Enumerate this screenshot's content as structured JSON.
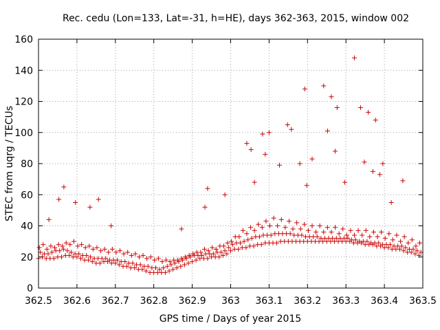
{
  "colors": {
    "marker": "#cc0000",
    "grid": "#a0a0a0",
    "axis": "#000000",
    "background": "#ffffff"
  },
  "chart_data": {
    "type": "scatter",
    "title": "Rec. cedu (Lon=133, Lat=-31, h=HE), days 362-363, 2015, window 002",
    "xlabel": "GPS time / Days of year 2015",
    "ylabel": "STEC from uqrg / TECUs",
    "xlim": [
      362.5,
      363.5
    ],
    "ylim": [
      0,
      160
    ],
    "grid": true,
    "marker": "plus",
    "x_ticks": [
      362.5,
      362.6,
      362.7,
      362.8,
      362.9,
      363.0,
      363.1,
      363.2,
      363.3,
      363.4,
      363.5
    ],
    "x_tick_labels": [
      "362.5",
      "362.6",
      "362.7",
      "362.8",
      "362.9",
      "363",
      "363.1",
      "363.2",
      "363.3",
      "363.4",
      "363.5"
    ],
    "y_ticks": [
      0,
      20,
      40,
      60,
      80,
      100,
      120,
      140,
      160
    ],
    "y_tick_labels": [
      "0",
      "20",
      "40",
      "60",
      "80",
      "100",
      "120",
      "140",
      "160"
    ],
    "x": [
      362.5,
      362.51,
      362.52,
      362.53,
      362.54,
      362.55,
      362.56,
      362.57,
      362.58,
      362.59,
      362.6,
      362.61,
      362.62,
      362.63,
      362.64,
      362.65,
      362.66,
      362.67,
      362.68,
      362.69,
      362.7,
      362.71,
      362.72,
      362.73,
      362.74,
      362.75,
      362.76,
      362.77,
      362.78,
      362.79,
      362.8,
      362.81,
      362.82,
      362.83,
      362.84,
      362.85,
      362.86,
      362.87,
      362.88,
      362.89,
      362.9,
      362.91,
      362.92,
      362.93,
      362.94,
      362.95,
      362.96,
      362.97,
      362.98,
      362.99,
      363.0,
      363.01,
      363.02,
      363.03,
      363.04,
      363.05,
      363.06,
      363.07,
      363.08,
      363.09,
      363.1,
      363.11,
      363.12,
      363.13,
      363.14,
      363.15,
      363.16,
      363.17,
      363.18,
      363.19,
      363.2,
      363.21,
      363.22,
      363.23,
      363.24,
      363.25,
      363.26,
      363.27,
      363.28,
      363.29,
      363.3,
      363.31,
      363.32,
      363.33,
      363.34,
      363.35,
      363.36,
      363.37,
      363.38,
      363.39,
      363.4,
      363.41,
      363.42,
      363.43,
      363.44,
      363.45,
      363.46,
      363.47,
      363.48,
      363.49,
      362.505,
      362.515,
      362.525,
      362.535,
      362.545,
      362.555,
      362.565,
      362.575,
      362.585,
      362.595,
      362.605,
      362.615,
      362.625,
      362.635,
      362.645,
      362.655,
      362.665,
      362.675,
      362.685,
      362.695,
      362.705,
      362.715,
      362.725,
      362.735,
      362.745,
      362.755,
      362.765,
      362.775,
      362.785,
      362.795,
      362.805,
      362.815,
      362.825,
      362.835,
      362.845,
      362.855,
      362.865,
      362.875,
      362.885,
      362.895,
      362.905,
      362.915,
      362.925,
      362.935,
      362.945,
      362.955,
      362.965,
      362.975,
      362.985,
      362.995,
      363.005,
      363.015,
      363.025,
      363.035,
      363.045,
      363.055,
      363.065,
      363.075,
      363.085,
      363.095,
      363.105,
      363.115,
      363.125,
      363.135,
      363.145,
      363.155,
      363.165,
      363.175,
      363.185,
      363.195,
      363.205,
      363.215,
      363.225,
      363.235,
      363.245,
      363.255,
      363.265,
      363.275,
      363.285,
      363.295,
      363.305,
      363.315,
      363.325,
      363.335,
      363.345,
      363.355,
      363.365,
      363.375,
      363.385,
      363.395,
      363.405,
      363.415,
      363.425,
      363.435,
      363.445,
      363.455,
      363.465,
      363.475,
      363.485,
      363.495,
      362.502,
      362.522,
      362.542,
      362.562,
      362.582,
      362.602,
      362.622,
      362.642,
      362.662,
      362.682,
      362.702,
      362.722,
      362.742,
      362.762,
      362.782,
      362.802,
      362.822,
      362.842,
      362.862,
      362.882,
      362.902,
      362.922,
      362.942,
      362.962,
      362.982,
      363.002,
      363.022,
      363.042,
      363.062,
      363.082,
      363.102,
      363.122,
      363.142,
      363.162,
      363.182,
      363.202,
      363.222,
      363.242,
      363.262,
      363.282,
      363.302,
      363.322,
      363.342,
      363.362,
      363.382,
      363.402,
      363.422,
      363.442,
      363.462,
      363.482,
      362.512,
      362.532,
      362.552,
      362.572,
      362.592,
      362.612,
      362.632,
      362.652,
      362.672,
      362.692,
      362.712,
      362.732,
      362.752,
      362.772,
      362.792,
      362.812,
      362.832,
      362.852,
      362.872,
      362.892,
      362.912,
      362.932,
      362.952,
      362.972,
      362.992,
      363.012,
      363.032,
      363.052,
      363.072,
      363.092,
      363.112,
      363.132,
      363.152,
      363.172,
      363.192,
      363.212,
      363.232,
      363.252,
      363.272,
      363.292,
      363.312,
      363.332,
      363.352,
      363.372,
      363.392,
      363.412,
      363.432,
      363.452,
      363.472,
      363.492,
      362.527,
      362.553,
      362.566,
      362.596,
      362.634,
      362.656,
      362.689,
      362.872,
      362.933,
      362.94,
      362.985,
      363.042,
      363.053,
      363.062,
      363.083,
      363.09,
      363.1,
      363.127,
      363.148,
      363.158,
      363.18,
      363.193,
      363.198,
      363.212,
      363.242,
      363.252,
      363.262,
      363.272,
      363.277,
      363.297,
      363.322,
      363.338,
      363.348,
      363.358,
      363.37,
      363.377,
      363.388,
      363.396,
      363.418,
      363.448
    ],
    "y": [
      19,
      20,
      19,
      19,
      19,
      20,
      20,
      21,
      21,
      20,
      20,
      19,
      18,
      18,
      17,
      16,
      16,
      17,
      17,
      16,
      16,
      15,
      14,
      14,
      13,
      13,
      12,
      12,
      11,
      10,
      10,
      10,
      10,
      10,
      11,
      12,
      13,
      14,
      15,
      16,
      17,
      18,
      19,
      19,
      19,
      20,
      20,
      20,
      21,
      22,
      24,
      25,
      25,
      26,
      26,
      27,
      27,
      28,
      28,
      29,
      29,
      29,
      29,
      30,
      30,
      30,
      30,
      30,
      30,
      30,
      30,
      30,
      30,
      30,
      30,
      30,
      30,
      30,
      30,
      30,
      30,
      30,
      29,
      29,
      29,
      28,
      28,
      28,
      27,
      27,
      26,
      26,
      25,
      25,
      25,
      24,
      23,
      23,
      22,
      21,
      23,
      22,
      22,
      23,
      24,
      24,
      25,
      24,
      23,
      22,
      22,
      21,
      21,
      20,
      19,
      19,
      19,
      19,
      18,
      18,
      18,
      17,
      17,
      16,
      16,
      15,
      15,
      14,
      14,
      13,
      13,
      12,
      13,
      14,
      15,
      16,
      17,
      18,
      19,
      20,
      21,
      21,
      21,
      22,
      22,
      22,
      23,
      23,
      24,
      26,
      28,
      29,
      29,
      30,
      31,
      32,
      33,
      33,
      34,
      34,
      34,
      35,
      35,
      35,
      35,
      35,
      34,
      34,
      34,
      33,
      33,
      33,
      33,
      32,
      32,
      32,
      32,
      32,
      32,
      32,
      32,
      31,
      31,
      30,
      30,
      30,
      29,
      29,
      29,
      28,
      28,
      28,
      27,
      27,
      27,
      26,
      25,
      25,
      24,
      23,
      26,
      25,
      26,
      27,
      28,
      27,
      26,
      25,
      24,
      23,
      23,
      22,
      21,
      20,
      19,
      18,
      17,
      17,
      18,
      20,
      22,
      23,
      24,
      25,
      27,
      30,
      33,
      35,
      37,
      39,
      40,
      40,
      39,
      38,
      38,
      37,
      36,
      36,
      36,
      35,
      34,
      34,
      34,
      33,
      33,
      32,
      31,
      30,
      29,
      27,
      28,
      27,
      28,
      29,
      30,
      28,
      27,
      26,
      25,
      25,
      24,
      23,
      22,
      21,
      20,
      19,
      18,
      18,
      19,
      21,
      23,
      25,
      26,
      27,
      29,
      33,
      37,
      39,
      41,
      43,
      45,
      44,
      43,
      42,
      41,
      40,
      40,
      39,
      39,
      38,
      37,
      37,
      37,
      36,
      36,
      35,
      34,
      33,
      31,
      29,
      44,
      57,
      65,
      55,
      52,
      57,
      40,
      38,
      52,
      64,
      60,
      93,
      89,
      68,
      99,
      86,
      100,
      79,
      105,
      102,
      80,
      128,
      66,
      83,
      130,
      101,
      123,
      88,
      116,
      68,
      148,
      116,
      81,
      113,
      75,
      108,
      73,
      80,
      55,
      69
    ]
  },
  "series_note": ""
}
